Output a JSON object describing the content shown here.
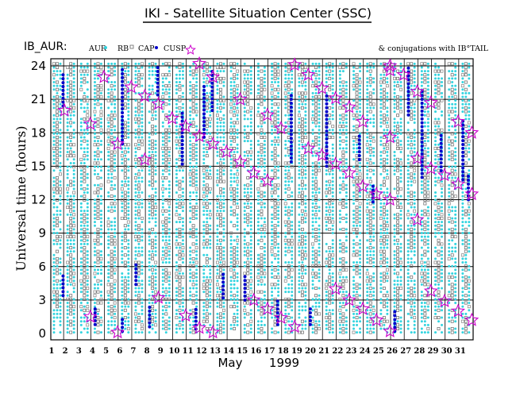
{
  "title": "IKI - Satellite Situation Center (SSC)",
  "satellite_label": "IB_AUR:",
  "conjugation_label": "& conjugations with IB°TAIL",
  "month_label": "May",
  "year_label": "1999",
  "colors": {
    "aur": "#33d4e0",
    "rb": "#666666",
    "cap": "#808080",
    "cusp": "#0000cc",
    "conjugation": "#cc00cc",
    "frame": "#000000"
  },
  "chart_data": {
    "type": "scatter",
    "title": "IKI - Satellite Situation Center (SSC)",
    "xlabel": "May 1999",
    "ylabel": "Universal time (hours)",
    "xlim": [
      1,
      32
    ],
    "ylim": [
      0,
      24
    ],
    "x_ticks": [
      1,
      2,
      3,
      4,
      5,
      6,
      7,
      8,
      9,
      10,
      11,
      12,
      13,
      14,
      15,
      16,
      17,
      18,
      19,
      20,
      21,
      22,
      23,
      24,
      25,
      26,
      27,
      28,
      29,
      30,
      31
    ],
    "y_ticks": [
      0,
      3,
      6,
      9,
      12,
      15,
      18,
      21,
      24
    ],
    "grid": "horizontal lines at every 3 hours, vertical lines at every day",
    "legend": [
      {
        "name": "AUR",
        "marker": "cyan dots"
      },
      {
        "name": "RB",
        "marker": "small open squares"
      },
      {
        "name": "CAP",
        "marker": "small open squares"
      },
      {
        "name": "CUSP",
        "marker": "blue dots"
      }
    ],
    "cusp_intervals": [
      {
        "day": 1.55,
        "from": 20.4,
        "to": 23.4
      },
      {
        "day": 1.55,
        "from": 3.4,
        "to": 5.2
      },
      {
        "day": 3.9,
        "from": 0.8,
        "to": 2.4
      },
      {
        "day": 5.9,
        "from": 17.0,
        "to": 23.8
      },
      {
        "day": 5.9,
        "from": 0.2,
        "to": 1.4
      },
      {
        "day": 6.9,
        "from": 4.4,
        "to": 6.4
      },
      {
        "day": 7.9,
        "from": 0.6,
        "to": 2.6
      },
      {
        "day": 8.5,
        "from": 21.4,
        "to": 24.0
      },
      {
        "day": 10.3,
        "from": 15.2,
        "to": 20.0
      },
      {
        "day": 11.3,
        "from": 0.4,
        "to": 2.2
      },
      {
        "day": 11.9,
        "from": 17.6,
        "to": 22.4
      },
      {
        "day": 12.5,
        "from": 20.0,
        "to": 23.6
      },
      {
        "day": 13.3,
        "from": 3.2,
        "to": 5.4
      },
      {
        "day": 14.9,
        "from": 3.0,
        "to": 5.4
      },
      {
        "day": 17.3,
        "from": 0.8,
        "to": 3.0
      },
      {
        "day": 18.3,
        "from": 15.4,
        "to": 21.6
      },
      {
        "day": 19.7,
        "from": 0.8,
        "to": 2.4
      },
      {
        "day": 20.9,
        "from": 15.0,
        "to": 21.6
      },
      {
        "day": 23.3,
        "from": 15.6,
        "to": 17.8
      },
      {
        "day": 24.3,
        "from": 11.8,
        "to": 13.4
      },
      {
        "day": 25.9,
        "from": 0.2,
        "to": 2.0
      },
      {
        "day": 26.9,
        "from": 19.6,
        "to": 24.0
      },
      {
        "day": 27.9,
        "from": 14.0,
        "to": 22.0
      },
      {
        "day": 29.3,
        "from": 14.6,
        "to": 18.0
      },
      {
        "day": 30.9,
        "from": 13.8,
        "to": 19.4
      },
      {
        "day": 31.3,
        "from": 12.0,
        "to": 14.4
      }
    ],
    "conjugations": [
      {
        "day": 2.0,
        "ut": 20.0
      },
      {
        "day": 3.9,
        "ut": 1.5
      },
      {
        "day": 3.9,
        "ut": 18.8
      },
      {
        "day": 4.9,
        "ut": 23.0
      },
      {
        "day": 5.9,
        "ut": 17.0
      },
      {
        "day": 5.9,
        "ut": 0.1
      },
      {
        "day": 6.9,
        "ut": 22.1
      },
      {
        "day": 7.9,
        "ut": 21.3
      },
      {
        "day": 7.9,
        "ut": 15.6
      },
      {
        "day": 8.9,
        "ut": 20.6
      },
      {
        "day": 8.9,
        "ut": 3.2
      },
      {
        "day": 9.9,
        "ut": 19.3
      },
      {
        "day": 10.9,
        "ut": 18.6
      },
      {
        "day": 10.9,
        "ut": 1.6
      },
      {
        "day": 11.9,
        "ut": 24.2
      },
      {
        "day": 11.9,
        "ut": 17.7
      },
      {
        "day": 11.9,
        "ut": 0.5
      },
      {
        "day": 12.9,
        "ut": 23.0
      },
      {
        "day": 12.9,
        "ut": 17.0
      },
      {
        "day": 12.9,
        "ut": 0.1
      },
      {
        "day": 13.9,
        "ut": 16.3
      },
      {
        "day": 14.9,
        "ut": 21.0
      },
      {
        "day": 14.9,
        "ut": 15.4
      },
      {
        "day": 15.9,
        "ut": 14.4
      },
      {
        "day": 15.9,
        "ut": 3.0
      },
      {
        "day": 16.9,
        "ut": 19.6
      },
      {
        "day": 16.9,
        "ut": 13.7
      },
      {
        "day": 16.9,
        "ut": 2.2
      },
      {
        "day": 17.9,
        "ut": 18.4
      },
      {
        "day": 17.9,
        "ut": 1.4
      },
      {
        "day": 18.9,
        "ut": 24.1
      },
      {
        "day": 18.9,
        "ut": 0.6
      },
      {
        "day": 19.9,
        "ut": 23.2
      },
      {
        "day": 19.9,
        "ut": 16.6
      },
      {
        "day": 20.9,
        "ut": 22.0
      },
      {
        "day": 20.9,
        "ut": 16.0
      },
      {
        "day": 21.9,
        "ut": 21.1
      },
      {
        "day": 21.9,
        "ut": 15.2
      },
      {
        "day": 21.9,
        "ut": 4.0
      },
      {
        "day": 22.9,
        "ut": 20.3
      },
      {
        "day": 22.9,
        "ut": 14.4
      },
      {
        "day": 22.9,
        "ut": 3.0
      },
      {
        "day": 23.9,
        "ut": 19.0
      },
      {
        "day": 23.9,
        "ut": 13.2
      },
      {
        "day": 23.9,
        "ut": 2.2
      },
      {
        "day": 24.9,
        "ut": 12.5
      },
      {
        "day": 24.9,
        "ut": 1.2
      },
      {
        "day": 25.9,
        "ut": 24.0
      },
      {
        "day": 25.9,
        "ut": 23.6
      },
      {
        "day": 25.9,
        "ut": 17.6
      },
      {
        "day": 25.9,
        "ut": 12.0
      },
      {
        "day": 25.9,
        "ut": 0.2
      },
      {
        "day": 26.9,
        "ut": 23.2
      },
      {
        "day": 27.9,
        "ut": 21.7
      },
      {
        "day": 27.9,
        "ut": 15.7
      },
      {
        "day": 27.9,
        "ut": 10.2
      },
      {
        "day": 28.9,
        "ut": 20.7
      },
      {
        "day": 28.9,
        "ut": 14.8
      },
      {
        "day": 28.9,
        "ut": 3.8
      },
      {
        "day": 29.9,
        "ut": 14.2
      },
      {
        "day": 29.9,
        "ut": 2.9
      },
      {
        "day": 30.9,
        "ut": 19.0
      },
      {
        "day": 30.9,
        "ut": 13.4
      },
      {
        "day": 30.9,
        "ut": 2.0
      },
      {
        "day": 31.9,
        "ut": 18.0
      },
      {
        "day": 31.9,
        "ut": 12.5
      },
      {
        "day": 31.9,
        "ut": 1.2
      }
    ]
  }
}
